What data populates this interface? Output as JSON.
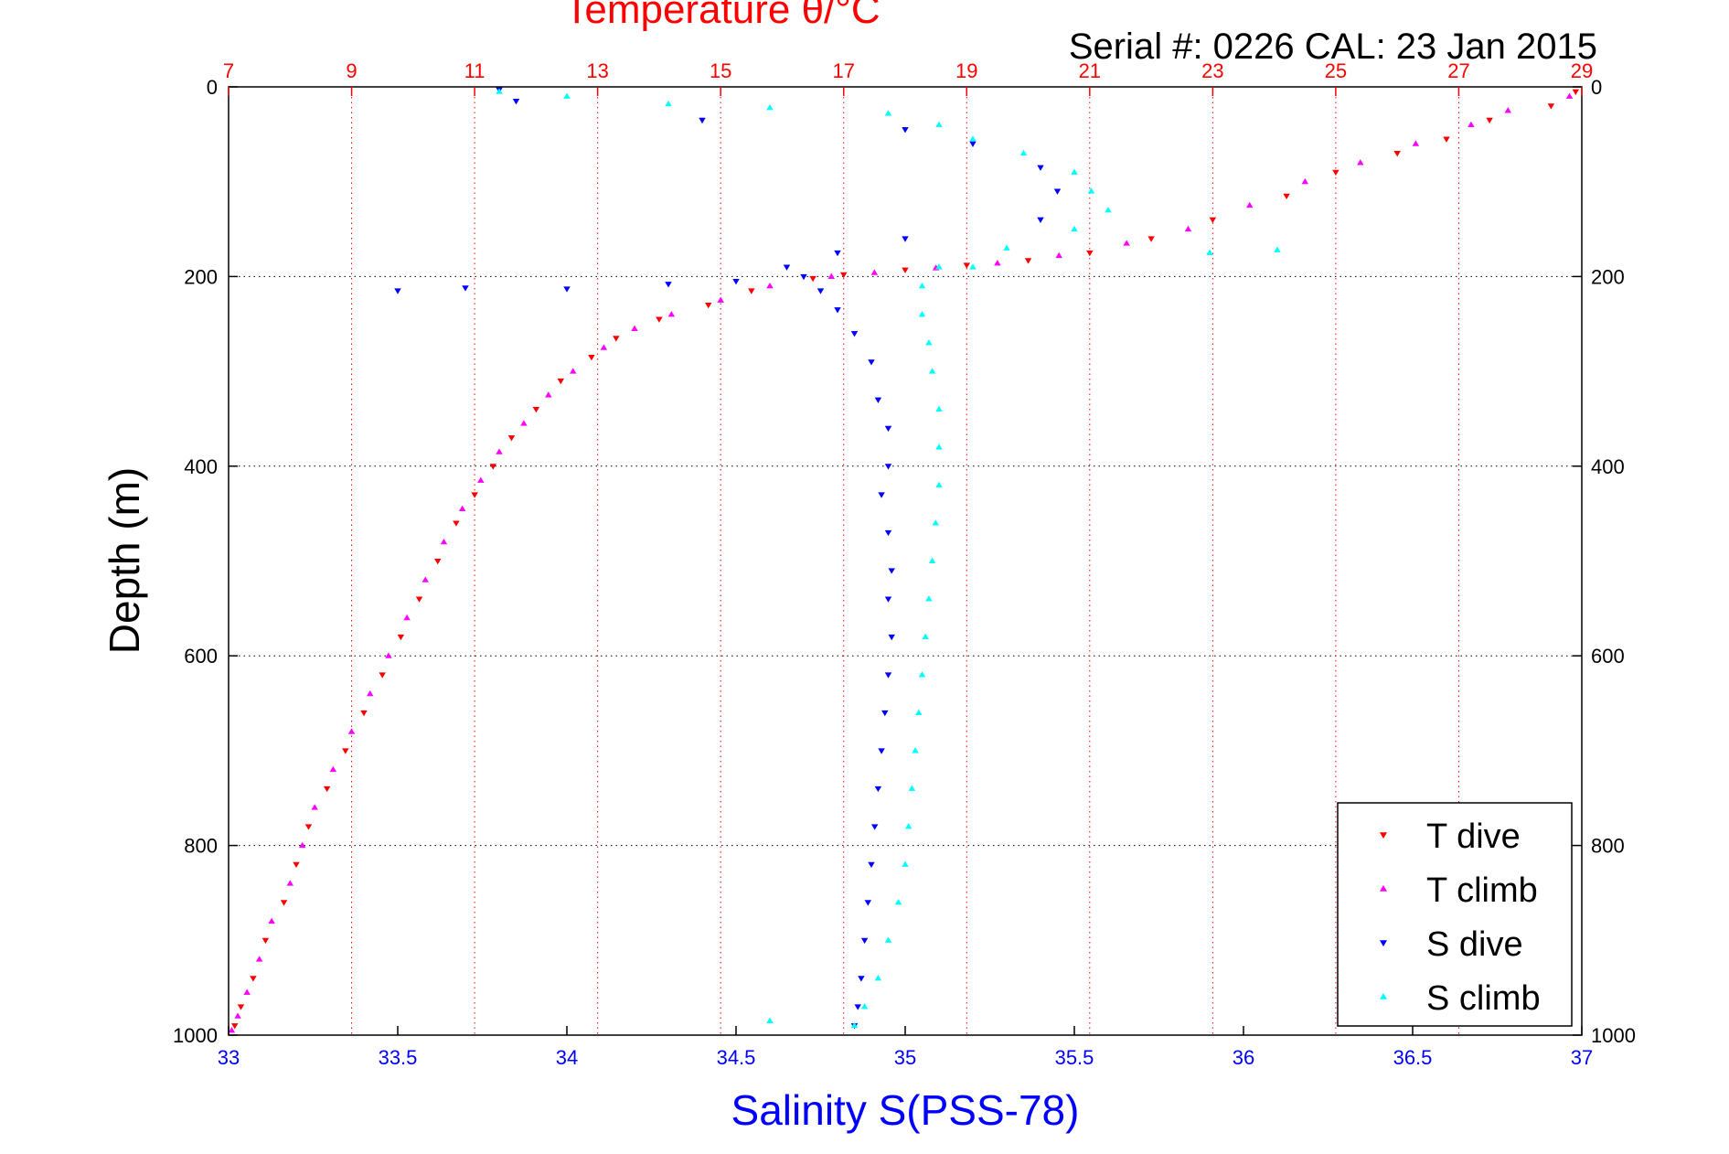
{
  "chart_data": {
    "type": "scatter",
    "title": "Temperature θ/°C",
    "subtitle": "Serial #: 0226  CAL: 23 Jan 2015",
    "xlabel": "Salinity S(PSS-78)",
    "ylabel": "Depth (m)",
    "x_bottom": {
      "label": "Salinity S(PSS-78)",
      "lim": [
        33,
        37
      ],
      "ticks": [
        "33",
        "33.5",
        "34",
        "34.5",
        "35",
        "35.5",
        "36",
        "36.5",
        "37"
      ],
      "color": "#0000ff"
    },
    "x_top": {
      "label": "Temperature θ/°C",
      "lim": [
        7,
        29
      ],
      "ticks": [
        "7",
        "9",
        "11",
        "13",
        "15",
        "17",
        "19",
        "21",
        "23",
        "25",
        "27",
        "29"
      ],
      "color": "#ff0000"
    },
    "y": {
      "label": "Depth (m)",
      "lim": [
        0,
        1000
      ],
      "reversed": true,
      "ticks": [
        "0",
        "200",
        "400",
        "600",
        "800",
        "1000"
      ]
    },
    "grid": true,
    "legend_position": "bottom-right",
    "series": [
      {
        "name": "T dive",
        "axis": "top",
        "color": "#ff0000",
        "marker": "triangle-down",
        "points": [
          [
            28.9,
            5
          ],
          [
            28.5,
            20
          ],
          [
            27.5,
            35
          ],
          [
            26.8,
            55
          ],
          [
            26.0,
            70
          ],
          [
            25.0,
            90
          ],
          [
            24.2,
            115
          ],
          [
            23.0,
            140
          ],
          [
            22.0,
            160
          ],
          [
            21.0,
            175
          ],
          [
            20.0,
            183
          ],
          [
            19.0,
            188
          ],
          [
            18.0,
            193
          ],
          [
            17.0,
            198
          ],
          [
            16.5,
            202
          ],
          [
            15.5,
            215
          ],
          [
            14.8,
            230
          ],
          [
            14.0,
            245
          ],
          [
            13.3,
            265
          ],
          [
            12.9,
            285
          ],
          [
            12.4,
            310
          ],
          [
            12.0,
            340
          ],
          [
            11.6,
            370
          ],
          [
            11.3,
            400
          ],
          [
            11.0,
            430
          ],
          [
            10.7,
            460
          ],
          [
            10.4,
            500
          ],
          [
            10.1,
            540
          ],
          [
            9.8,
            580
          ],
          [
            9.5,
            620
          ],
          [
            9.2,
            660
          ],
          [
            8.9,
            700
          ],
          [
            8.6,
            740
          ],
          [
            8.3,
            780
          ],
          [
            8.1,
            820
          ],
          [
            7.9,
            860
          ],
          [
            7.6,
            900
          ],
          [
            7.4,
            940
          ],
          [
            7.2,
            970
          ],
          [
            7.1,
            990
          ]
        ]
      },
      {
        "name": "T climb",
        "axis": "top",
        "color": "#ff00ff",
        "marker": "triangle-up",
        "points": [
          [
            28.8,
            10
          ],
          [
            27.8,
            25
          ],
          [
            27.2,
            40
          ],
          [
            26.3,
            60
          ],
          [
            25.4,
            80
          ],
          [
            24.5,
            100
          ],
          [
            23.6,
            125
          ],
          [
            22.6,
            150
          ],
          [
            21.6,
            165
          ],
          [
            20.5,
            178
          ],
          [
            19.5,
            186
          ],
          [
            18.5,
            191
          ],
          [
            17.5,
            196
          ],
          [
            16.8,
            200
          ],
          [
            15.8,
            210
          ],
          [
            15.0,
            225
          ],
          [
            14.2,
            240
          ],
          [
            13.6,
            255
          ],
          [
            13.1,
            275
          ],
          [
            12.6,
            300
          ],
          [
            12.2,
            325
          ],
          [
            11.8,
            355
          ],
          [
            11.4,
            385
          ],
          [
            11.1,
            415
          ],
          [
            10.8,
            445
          ],
          [
            10.5,
            480
          ],
          [
            10.2,
            520
          ],
          [
            9.9,
            560
          ],
          [
            9.6,
            600
          ],
          [
            9.3,
            640
          ],
          [
            9.0,
            680
          ],
          [
            8.7,
            720
          ],
          [
            8.4,
            760
          ],
          [
            8.2,
            800
          ],
          [
            8.0,
            840
          ],
          [
            7.7,
            880
          ],
          [
            7.5,
            920
          ],
          [
            7.3,
            955
          ],
          [
            7.15,
            980
          ],
          [
            7.05,
            995
          ]
        ]
      },
      {
        "name": "S dive",
        "axis": "bottom",
        "color": "#0000ff",
        "marker": "triangle-down",
        "points": [
          [
            33.8,
            3
          ],
          [
            33.85,
            15
          ],
          [
            34.4,
            35
          ],
          [
            35.0,
            45
          ],
          [
            35.2,
            60
          ],
          [
            35.4,
            85
          ],
          [
            35.45,
            110
          ],
          [
            35.4,
            140
          ],
          [
            35.0,
            160
          ],
          [
            34.8,
            175
          ],
          [
            34.65,
            190
          ],
          [
            34.7,
            200
          ],
          [
            34.75,
            215
          ],
          [
            34.8,
            235
          ],
          [
            34.85,
            260
          ],
          [
            34.9,
            290
          ],
          [
            34.92,
            330
          ],
          [
            34.95,
            360
          ],
          [
            34.95,
            400
          ],
          [
            34.93,
            430
          ],
          [
            34.95,
            470
          ],
          [
            34.96,
            510
          ],
          [
            34.95,
            540
          ],
          [
            34.96,
            580
          ],
          [
            34.95,
            620
          ],
          [
            34.94,
            660
          ],
          [
            34.93,
            700
          ],
          [
            34.92,
            740
          ],
          [
            34.91,
            780
          ],
          [
            34.9,
            820
          ],
          [
            34.89,
            860
          ],
          [
            34.88,
            900
          ],
          [
            34.87,
            940
          ],
          [
            34.86,
            970
          ],
          [
            34.85,
            990
          ],
          [
            33.5,
            215
          ],
          [
            33.7,
            212
          ],
          [
            34.0,
            213
          ],
          [
            34.3,
            208
          ],
          [
            34.5,
            205
          ]
        ]
      },
      {
        "name": "S climb",
        "axis": "bottom",
        "color": "#00ffff",
        "marker": "triangle-up",
        "points": [
          [
            33.8,
            5
          ],
          [
            34.0,
            10
          ],
          [
            34.3,
            18
          ],
          [
            34.6,
            22
          ],
          [
            34.95,
            28
          ],
          [
            35.1,
            40
          ],
          [
            35.2,
            55
          ],
          [
            35.35,
            70
          ],
          [
            35.5,
            90
          ],
          [
            35.55,
            110
          ],
          [
            35.6,
            130
          ],
          [
            35.5,
            150
          ],
          [
            35.3,
            170
          ],
          [
            35.1,
            190
          ],
          [
            35.05,
            210
          ],
          [
            35.05,
            240
          ],
          [
            35.07,
            270
          ],
          [
            35.08,
            300
          ],
          [
            35.1,
            340
          ],
          [
            35.1,
            380
          ],
          [
            35.1,
            420
          ],
          [
            35.09,
            460
          ],
          [
            35.08,
            500
          ],
          [
            35.07,
            540
          ],
          [
            35.06,
            580
          ],
          [
            35.05,
            620
          ],
          [
            35.04,
            660
          ],
          [
            35.03,
            700
          ],
          [
            35.02,
            740
          ],
          [
            35.01,
            780
          ],
          [
            35.0,
            820
          ],
          [
            34.98,
            860
          ],
          [
            34.95,
            900
          ],
          [
            34.92,
            940
          ],
          [
            34.88,
            970
          ],
          [
            34.85,
            990
          ],
          [
            34.6,
            985
          ],
          [
            36.1,
            172
          ],
          [
            35.9,
            175
          ],
          [
            35.2,
            190
          ]
        ]
      }
    ]
  }
}
